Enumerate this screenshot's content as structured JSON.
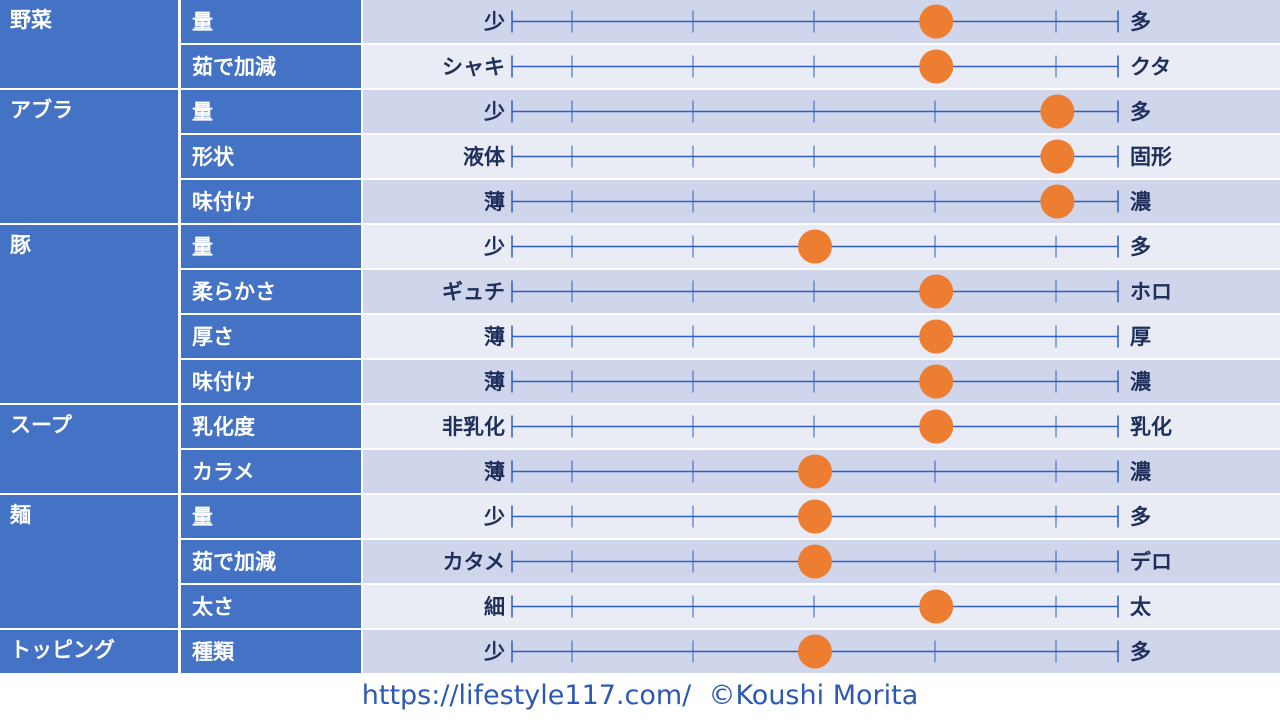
{
  "chart_data": {
    "type": "table",
    "scale": {
      "min": 0,
      "max": 10
    },
    "rows": [
      {
        "category": "野菜",
        "attribute": "量",
        "low": "少",
        "high": "多",
        "value": 7
      },
      {
        "category": "",
        "attribute": "茹で加減",
        "low": "シャキ",
        "high": "クタ",
        "value": 7
      },
      {
        "category": "アブラ",
        "attribute": "量",
        "low": "少",
        "high": "多",
        "value": 9
      },
      {
        "category": "",
        "attribute": "形状",
        "low": "液体",
        "high": "固形",
        "value": 9
      },
      {
        "category": "",
        "attribute": "味付け",
        "low": "薄",
        "high": "濃",
        "value": 9
      },
      {
        "category": "豚",
        "attribute": "量",
        "low": "少",
        "high": "多",
        "value": 5
      },
      {
        "category": "",
        "attribute": "柔らかさ",
        "low": "ギュチ",
        "high": "ホロ",
        "value": 7
      },
      {
        "category": "",
        "attribute": "厚さ",
        "low": "薄",
        "high": "厚",
        "value": 7
      },
      {
        "category": "",
        "attribute": "味付け",
        "low": "薄",
        "high": "濃",
        "value": 7
      },
      {
        "category": "スープ",
        "attribute": "乳化度",
        "low": "非乳化",
        "high": "乳化",
        "value": 7
      },
      {
        "category": "",
        "attribute": "カラメ",
        "low": "薄",
        "high": "濃",
        "value": 5
      },
      {
        "category": "麺",
        "attribute": "量",
        "low": "少",
        "high": "多",
        "value": 5
      },
      {
        "category": "",
        "attribute": "茹で加減",
        "low": "カタメ",
        "high": "デロ",
        "value": 5
      },
      {
        "category": "",
        "attribute": "太さ",
        "low": "細",
        "high": "太",
        "value": 7
      },
      {
        "category": "トッピング",
        "attribute": "種類",
        "low": "少",
        "high": "多",
        "value": 5
      }
    ]
  },
  "footer": {
    "text": "https://lifestyle117.com/  ©Koushi Morita"
  },
  "colors": {
    "header_blue": "#4472c4",
    "row_dark": "#cfd5ea",
    "row_light": "#e9ebf5",
    "line_blue": "#2f5fc4",
    "marker_orange": "#ed7d31",
    "label_navy": "#1f2f5c"
  }
}
